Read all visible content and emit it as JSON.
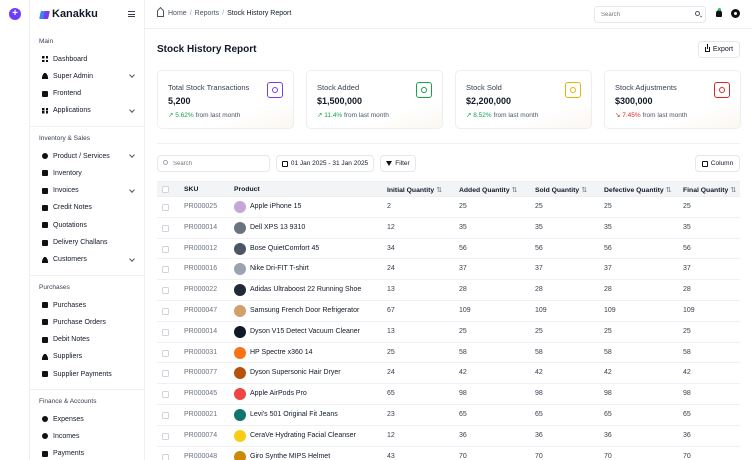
{
  "brand": {
    "name": "Kanakku"
  },
  "sidebar": {
    "sections": [
      {
        "title": "Main",
        "items": [
          {
            "label": "Dashboard",
            "icon": "grid-icon",
            "chevron": false
          },
          {
            "label": "Super Admin",
            "icon": "user-icon",
            "chevron": true
          },
          {
            "label": "Frontend",
            "icon": "layout-icon",
            "chevron": false
          },
          {
            "label": "Applications",
            "icon": "apps-icon",
            "chevron": true
          }
        ]
      },
      {
        "title": "Inventory & Sales",
        "items": [
          {
            "label": "Product / Services",
            "icon": "box-icon",
            "chevron": true
          },
          {
            "label": "Inventory",
            "icon": "inventory-icon",
            "chevron": false
          },
          {
            "label": "Invoices",
            "icon": "invoice-icon",
            "chevron": true
          },
          {
            "label": "Credit Notes",
            "icon": "note-icon",
            "chevron": false
          },
          {
            "label": "Quotations",
            "icon": "quote-icon",
            "chevron": false
          },
          {
            "label": "Delivery Challans",
            "icon": "truck-icon",
            "chevron": false
          },
          {
            "label": "Customers",
            "icon": "users-icon",
            "chevron": true
          }
        ]
      },
      {
        "title": "Purchases",
        "items": [
          {
            "label": "Purchases",
            "icon": "cart-icon",
            "chevron": false
          },
          {
            "label": "Purchase Orders",
            "icon": "order-icon",
            "chevron": false
          },
          {
            "label": "Debit Notes",
            "icon": "debit-icon",
            "chevron": false
          },
          {
            "label": "Suppliers",
            "icon": "supplier-icon",
            "chevron": false
          },
          {
            "label": "Supplier Payments",
            "icon": "payment-icon",
            "chevron": false
          }
        ]
      },
      {
        "title": "Finance & Accounts",
        "items": [
          {
            "label": "Expenses",
            "icon": "expense-icon",
            "chevron": false
          },
          {
            "label": "Incomes",
            "icon": "income-icon",
            "chevron": false
          },
          {
            "label": "Payments",
            "icon": "wallet-icon",
            "chevron": false
          }
        ]
      }
    ]
  },
  "topbar": {
    "breadcrumb": [
      "Home",
      "Reports",
      "Stock History Report"
    ],
    "search_placeholder": "Search"
  },
  "page": {
    "title": "Stock History Report",
    "export_label": "Export"
  },
  "cards": [
    {
      "label": "Total Stock Transactions",
      "value": "5,200",
      "trend": "5.62%",
      "trend_dir": "up",
      "suffix": "from last month",
      "accent": "#7c3aed",
      "icon": "dollar-icon"
    },
    {
      "label": "Stock Added",
      "value": "$1,500,000",
      "trend": "11.4%",
      "trend_dir": "up",
      "suffix": "from last month",
      "accent": "#16a34a",
      "icon": "bag-icon"
    },
    {
      "label": "Stock Sold",
      "value": "$2,200,000",
      "trend": "8.52%",
      "trend_dir": "up",
      "suffix": "from last month",
      "accent": "#eab308",
      "icon": "sold-icon"
    },
    {
      "label": "Stock Adjustments",
      "value": "$300,000",
      "trend": "7.45%",
      "trend_dir": "down",
      "suffix": "from last month",
      "accent": "#dc2626",
      "icon": "hourglass-icon"
    }
  ],
  "toolbar": {
    "search_placeholder": "Search",
    "date_range": "01 Jan 2025 - 31 Jan 2025",
    "filter_label": "Filter",
    "column_label": "Column"
  },
  "table": {
    "headers": [
      "SKU",
      "Product",
      "Initial Quantity",
      "Added Quantity",
      "Sold Quantity",
      "Defective Quantity",
      "Final Quantity"
    ],
    "rows": [
      {
        "sku": "PR000025",
        "product": "Apple iPhone 15",
        "initial": "2",
        "added": "25",
        "sold": "25",
        "defective": "25",
        "final": "25",
        "thumb": "#c4a6d8"
      },
      {
        "sku": "PR000014",
        "product": "Dell XPS 13 9310",
        "initial": "12",
        "added": "35",
        "sold": "35",
        "defective": "35",
        "final": "35",
        "thumb": "#6b7280"
      },
      {
        "sku": "PR000012",
        "product": "Bose QuietComfort 45",
        "initial": "34",
        "added": "56",
        "sold": "56",
        "defective": "56",
        "final": "56",
        "thumb": "#4b5563"
      },
      {
        "sku": "PR000016",
        "product": "Nike Dri-FIT T-shirt",
        "initial": "24",
        "added": "37",
        "sold": "37",
        "defective": "37",
        "final": "37",
        "thumb": "#9ca3af"
      },
      {
        "sku": "PR000022",
        "product": "Adidas Ultraboost 22 Running Shoe",
        "initial": "13",
        "added": "28",
        "sold": "28",
        "defective": "28",
        "final": "28",
        "thumb": "#1f2937"
      },
      {
        "sku": "PR000047",
        "product": "Samsung French Door Refrigerator",
        "initial": "67",
        "added": "109",
        "sold": "109",
        "defective": "109",
        "final": "109",
        "thumb": "#d1a06a"
      },
      {
        "sku": "PR000014",
        "product": "Dyson V15 Detect  Vacuum Cleaner",
        "initial": "13",
        "added": "25",
        "sold": "25",
        "defective": "25",
        "final": "25",
        "thumb": "#111827"
      },
      {
        "sku": "PR000031",
        "product": "HP Spectre x360 14",
        "initial": "25",
        "added": "58",
        "sold": "58",
        "defective": "58",
        "final": "58",
        "thumb": "#f97316"
      },
      {
        "sku": "PR000077",
        "product": "Dyson Supersonic Hair Dryer",
        "initial": "24",
        "added": "42",
        "sold": "42",
        "defective": "42",
        "final": "42",
        "thumb": "#b45309"
      },
      {
        "sku": "PR000045",
        "product": "Apple AirPods Pro",
        "initial": "65",
        "added": "98",
        "sold": "98",
        "defective": "98",
        "final": "98",
        "thumb": "#ef4444"
      },
      {
        "sku": "PR000021",
        "product": "Levi's 501 Original Fit Jeans",
        "initial": "23",
        "added": "65",
        "sold": "65",
        "defective": "65",
        "final": "65",
        "thumb": "#0f766e"
      },
      {
        "sku": "PR000074",
        "product": "CeraVe Hydrating Facial Cleanser",
        "initial": "12",
        "added": "36",
        "sold": "36",
        "defective": "36",
        "final": "36",
        "thumb": "#facc15"
      },
      {
        "sku": "PR000048",
        "product": "Giro Synthe MIPS Helmet",
        "initial": "43",
        "added": "70",
        "sold": "70",
        "defective": "70",
        "final": "70",
        "thumb": "#ca8a04"
      }
    ]
  }
}
